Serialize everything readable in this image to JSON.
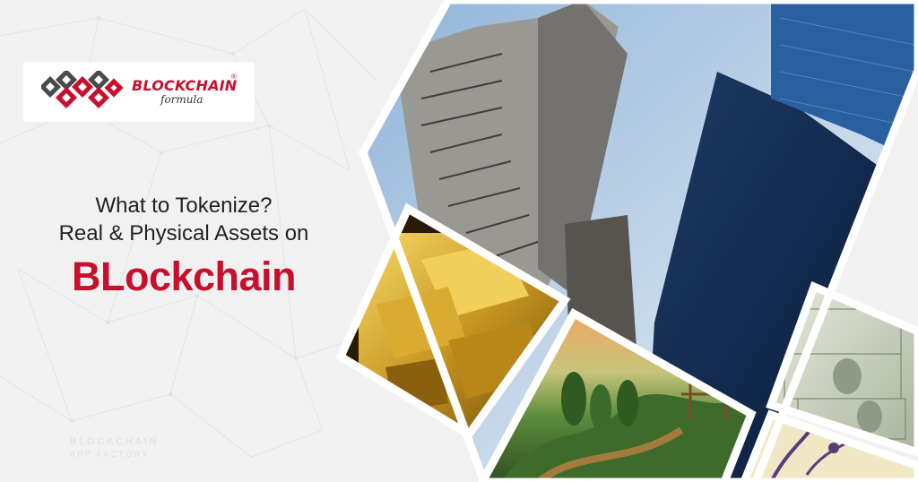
{
  "logo": {
    "brand": "BLOCKCHAIN",
    "registered": "®",
    "sub": "formula"
  },
  "headline": {
    "line1": "What to Tokenize?",
    "line2": "Real & Physical Assets on",
    "line3": "BLockchain"
  },
  "footer": {
    "line1": "BLOCKCHAIN",
    "line2": "APP FACTORY"
  },
  "colors": {
    "brand_red": "#c8102e",
    "logo_gray": "#4a4a4a",
    "background": "#f1f1f2"
  }
}
